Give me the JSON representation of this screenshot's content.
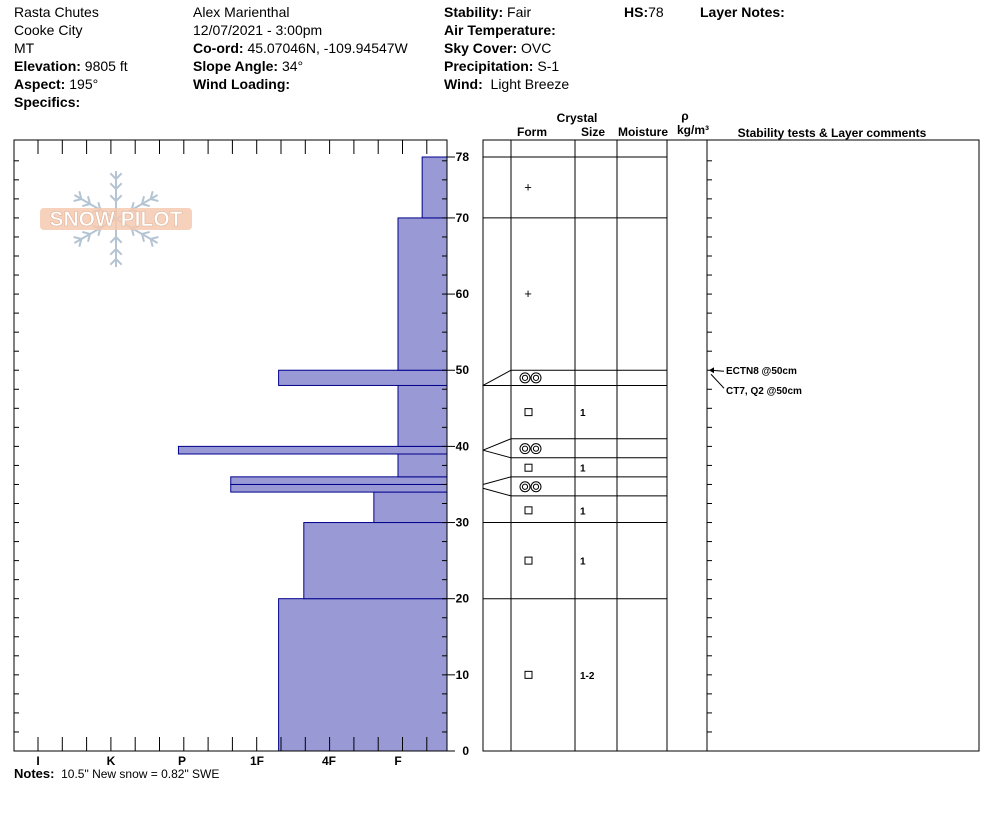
{
  "site": {
    "location": "Rasta Chutes",
    "area": "Cooke City",
    "state": "MT",
    "elevation_label": "Elevation:",
    "elevation": "9805 ft",
    "aspect_label": "Aspect:",
    "aspect": "195°",
    "specifics_label": "Specifics:",
    "specifics": ""
  },
  "observer": {
    "name": "Alex Marienthal",
    "datetime": "12/07/2021 - 3:00pm",
    "coord_label": "Co-ord:",
    "coord": "45.07046N, -109.94547W",
    "slope_label": "Slope Angle:",
    "slope": "34°",
    "wind_loading_label": "Wind Loading:",
    "wind_loading": ""
  },
  "conditions": {
    "stability_label": "Stability:",
    "stability": "Fair",
    "air_temp_label": "Air Temperature:",
    "air_temp": "",
    "sky_label": "Sky Cover:",
    "sky": "OVC",
    "precip_label": "Precipitation:",
    "precip": "S-1",
    "wind_label": "Wind:",
    "wind": "Light Breeze",
    "hs_label": "HS:",
    "hs": "78",
    "layer_notes_label": "Layer Notes:"
  },
  "notes": {
    "label": "Notes:",
    "text": "10.5\" New snow = 0.82\" SWE"
  },
  "logo_text": "SNOW PILOT",
  "columns": {
    "crystal": "Crystal",
    "form": "Form",
    "size": "Size",
    "moisture": "Moisture",
    "rho": "ρ",
    "density_unit": "kg/m³",
    "stability_tests": "Stability tests & Layer comments"
  },
  "colors": {
    "hardness_fill": "#9999d6",
    "hardness_stroke": "#00008b"
  },
  "chart_data": {
    "type": "bar",
    "description_axis": "hardness profile vs height",
    "hardness_categories": [
      "I",
      "K",
      "P",
      "1F",
      "4F",
      "F"
    ],
    "height_ticks": [
      0,
      10,
      20,
      30,
      40,
      50,
      60,
      70,
      78
    ],
    "height_range": [
      0,
      78
    ],
    "hardness_profile": [
      {
        "bottom": 0,
        "top": 20,
        "hardness": 3.3
      },
      {
        "bottom": 20,
        "top": 30,
        "hardness": 3.65
      },
      {
        "bottom": 30,
        "top": 34,
        "hardness": 4.65
      },
      {
        "bottom": 34,
        "top": 35,
        "hardness": 2.65
      },
      {
        "bottom": 35,
        "top": 36,
        "hardness": 2.65
      },
      {
        "bottom": 36,
        "top": 39,
        "hardness": 5.0
      },
      {
        "bottom": 39,
        "top": 40,
        "hardness": 1.95
      },
      {
        "bottom": 40,
        "top": 48,
        "hardness": 5.0
      },
      {
        "bottom": 48,
        "top": 50,
        "hardness": 3.3
      },
      {
        "bottom": 50,
        "top": 70,
        "hardness": 5.0
      },
      {
        "bottom": 70,
        "top": 78,
        "hardness": 5.35
      }
    ],
    "layer_boundaries": [
      78,
      70,
      50,
      48,
      41,
      38.5,
      36,
      33.5,
      30,
      20
    ],
    "layers": [
      {
        "mid": 74,
        "form": "+",
        "size": ""
      },
      {
        "mid": 60,
        "form": "+",
        "size": ""
      },
      {
        "mid": 49,
        "form": "◎◎",
        "size": ""
      },
      {
        "mid": 44.5,
        "form": "□",
        "size": "1"
      },
      {
        "mid": 39.7,
        "form": "◎◎",
        "size": ""
      },
      {
        "mid": 37.2,
        "form": "□",
        "size": "1"
      },
      {
        "mid": 34.7,
        "form": "◎◎",
        "size": ""
      },
      {
        "mid": 31.6,
        "form": "□",
        "size": "1"
      },
      {
        "mid": 25,
        "form": "□",
        "size": "1"
      },
      {
        "mid": 10,
        "form": "□",
        "size": "1-2"
      }
    ],
    "stability_tests": [
      {
        "height": 50,
        "text": "ECTN8 @50cm"
      },
      {
        "height": 50,
        "text": "CT7, Q2 @50cm"
      }
    ]
  }
}
